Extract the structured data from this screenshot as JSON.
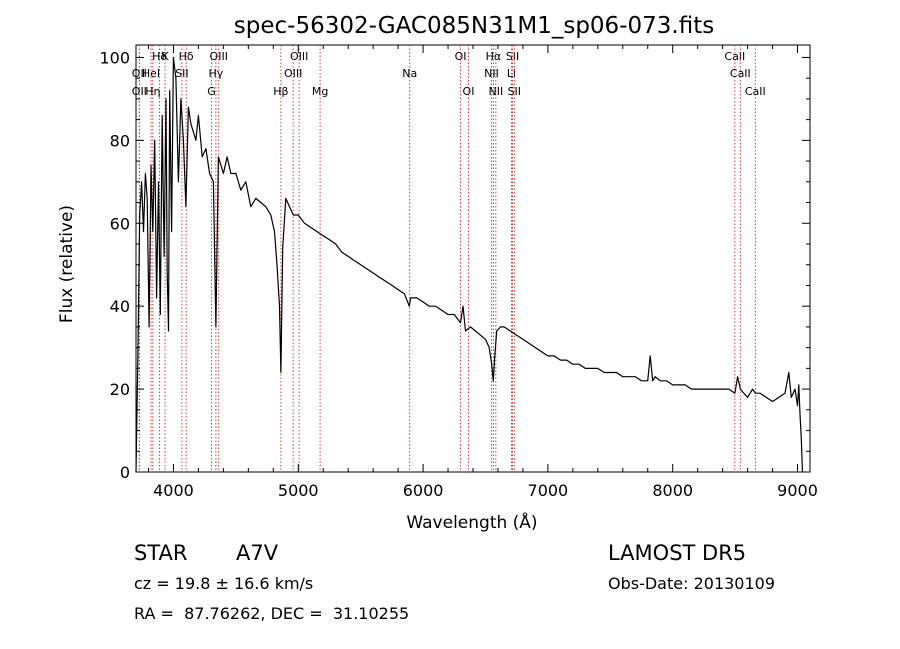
{
  "chart_data": {
    "type": "line",
    "title": "spec-56302-GAC085N31M1_sp06-073.fits",
    "xlabel": "Wavelength (Å)",
    "ylabel": "Flux (relative)",
    "xlim": [
      3700,
      9100
    ],
    "ylim": [
      0,
      103
    ],
    "x_ticks": [
      4000,
      5000,
      6000,
      7000,
      8000,
      9000
    ],
    "y_ticks": [
      0,
      20,
      40,
      60,
      80,
      100
    ],
    "grid": false,
    "legend": "none",
    "series": [
      {
        "x": [
          3700,
          3715,
          3730,
          3745,
          3760,
          3775,
          3790,
          3805,
          3820,
          3835,
          3850,
          3865,
          3880,
          3895,
          3910,
          3925,
          3940,
          3950,
          3960,
          3970,
          3985,
          4000,
          4020,
          4040,
          4060,
          4080,
          4100,
          4120,
          4140,
          4160,
          4180,
          4200,
          4230,
          4260,
          4290,
          4320,
          4340,
          4360,
          4380,
          4400,
          4430,
          4460,
          4500,
          4540,
          4580,
          4620,
          4660,
          4700,
          4740,
          4780,
          4810,
          4830,
          4850,
          4861,
          4875,
          4900,
          4930,
          4960,
          5000,
          5050,
          5100,
          5150,
          5200,
          5250,
          5300,
          5350,
          5400,
          5450,
          5500,
          5550,
          5600,
          5650,
          5700,
          5750,
          5800,
          5850,
          5890,
          5900,
          5950,
          6000,
          6050,
          6100,
          6150,
          6200,
          6250,
          6300,
          6320,
          6340,
          6380,
          6420,
          6460,
          6500,
          6530,
          6550,
          6563,
          6575,
          6590,
          6620,
          6650,
          6700,
          6750,
          6800,
          6850,
          6900,
          6950,
          7000,
          7050,
          7100,
          7150,
          7200,
          7250,
          7300,
          7350,
          7400,
          7450,
          7500,
          7550,
          7600,
          7650,
          7700,
          7750,
          7800,
          7820,
          7840,
          7860,
          7900,
          7950,
          8000,
          8050,
          8100,
          8150,
          8200,
          8250,
          8300,
          8350,
          8400,
          8450,
          8498,
          8520,
          8542,
          8570,
          8600,
          8640,
          8662,
          8700,
          8750,
          8800,
          8850,
          8900,
          8930,
          8950,
          8980,
          9000,
          9010,
          9020,
          9030,
          9040
        ],
        "y": [
          0,
          28,
          62,
          70,
          58,
          72,
          66,
          35,
          74,
          58,
          80,
          42,
          70,
          38,
          86,
          52,
          90,
          48,
          34,
          92,
          58,
          100,
          95,
          70,
          90,
          80,
          64,
          88,
          84,
          82,
          80,
          86,
          76,
          78,
          72,
          70,
          35,
          76,
          74,
          72,
          76,
          72,
          72,
          68,
          70,
          64,
          66,
          65,
          64,
          62,
          58,
          50,
          40,
          24,
          54,
          66,
          64,
          62,
          62,
          60,
          59,
          58,
          57,
          56,
          55,
          53,
          52,
          51,
          50,
          49,
          48,
          47,
          46,
          45,
          44,
          43,
          40,
          42,
          42,
          41,
          40,
          40,
          39,
          38,
          38,
          36,
          40,
          34,
          35,
          34,
          33,
          32,
          30,
          26,
          22,
          28,
          34,
          35,
          35,
          34,
          33,
          32,
          31,
          30,
          29,
          28,
          28,
          27,
          27,
          26,
          26,
          25,
          25,
          25,
          24,
          24,
          24,
          23,
          23,
          23,
          22,
          22,
          28,
          22,
          23,
          22,
          22,
          21,
          21,
          21,
          20,
          20,
          20,
          20,
          20,
          20,
          20,
          19,
          23,
          20,
          19,
          18,
          20,
          19,
          19,
          18,
          17,
          18,
          19,
          24,
          18,
          20,
          16,
          21,
          14,
          8,
          0
        ]
      }
    ],
    "lines_top": [
      {
        "label": "Hδ",
        "x": 3889
      },
      {
        "label": "K",
        "x": 3933
      },
      {
        "label": "Hδ",
        "x": 4102
      },
      {
        "label": "OIII",
        "x": 4363
      },
      {
        "label": "OIII",
        "x": 5007
      },
      {
        "label": "OI",
        "x": 6300
      },
      {
        "label": "Hα",
        "x": 6563
      },
      {
        "label": "SII",
        "x": 6717
      },
      {
        "label": "CaII",
        "x": 8498
      }
    ],
    "lines_mid": [
      {
        "label": "OII",
        "x": 3727
      },
      {
        "label": "HeI",
        "x": 3820
      },
      {
        "label": "SII",
        "x": 4068
      },
      {
        "label": "Hγ",
        "x": 4340
      },
      {
        "label": "OIII",
        "x": 4959
      },
      {
        "label": "Na",
        "x": 5893
      },
      {
        "label": "NII",
        "x": 6548
      },
      {
        "label": "Li",
        "x": 6708
      },
      {
        "label": "CaII",
        "x": 8542
      }
    ],
    "lines_low": [
      {
        "label": "OII",
        "x": 3727
      },
      {
        "label": "Hη",
        "x": 3835
      },
      {
        "label": "G",
        "x": 4305
      },
      {
        "label": "Hβ",
        "x": 4861
      },
      {
        "label": "Mg",
        "x": 5175
      },
      {
        "label": "OI",
        "x": 6364
      },
      {
        "label": "NII",
        "x": 6583
      },
      {
        "label": "SII",
        "x": 6731
      },
      {
        "label": "CaII",
        "x": 8662
      }
    ]
  },
  "info": {
    "object_class": "STAR",
    "subclass": "A7V",
    "survey": "LAMOST DR5",
    "redshift": "cz = 19.8 ± 16.6 km/s",
    "obs_date": "Obs-Date: 20130109",
    "coords": "RA =  87.76262, DEC =  31.10255"
  }
}
